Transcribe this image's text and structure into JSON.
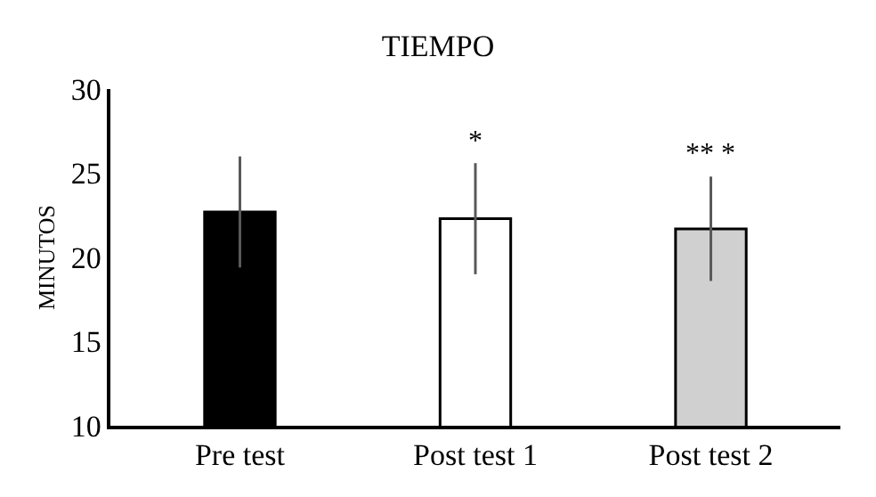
{
  "chart_data": {
    "type": "bar",
    "title": "TIEMPO",
    "ylabel": "MINUTOS",
    "categories": [
      "Pre test",
      "Post test 1",
      "Post test 2"
    ],
    "values": [
      22.7,
      22.3,
      21.7
    ],
    "colors": [
      "#000000",
      "#ffffff",
      "#d0d0d0"
    ],
    "errors": [
      3.3,
      3.3,
      3.1
    ],
    "ylim": [
      10,
      30
    ],
    "yticks": [
      10,
      15,
      20,
      25,
      30
    ],
    "annotations": [
      "*",
      "** *"
    ]
  }
}
